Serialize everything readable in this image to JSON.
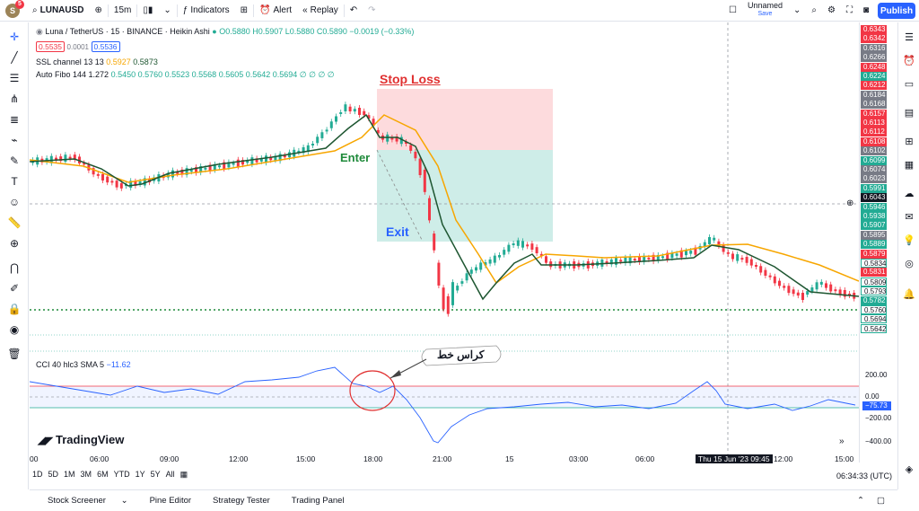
{
  "topbar": {
    "symbol": "LUNAUSD",
    "interval": "15m",
    "indicators": "Indicators",
    "alert": "Alert",
    "replay": "Replay",
    "layout_name": "Unnamed",
    "layout_status": "Save",
    "publish": "Publish",
    "avatar_letter": "S",
    "avatar_badge": "5"
  },
  "legend": {
    "title": "Luna / TetherUS · 15 · BINANCE · Heikin Ashi",
    "ohlc": "O0.5880 H0.5907 L0.5880 C0.5890 −0.0019 (−0.33%)",
    "sell": "0.5535",
    "spread": "0.0001",
    "buy": "0.5536",
    "ssl_label": "SSL channel 13 13",
    "ssl_v1": "0.5927",
    "ssl_v2": "0.5873",
    "fibo_label": "Auto Fibo 144 1.272",
    "fibo_values": "0.5450  0.5760  0.5523  0.5568  0.5605  0.5642  0.5694  ∅  ∅  ∅  ∅"
  },
  "cci": {
    "label": "CCI 40 hlc3 SMA 5",
    "value": "−11.62"
  },
  "annotations": {
    "stop_loss": "Stop Loss",
    "enter": "Enter",
    "exit": "Exit",
    "callout": "كراس خط"
  },
  "price_labels": [
    {
      "v": "0.6343",
      "c": "#f23645"
    },
    {
      "v": "0.6342",
      "c": "#f23645"
    },
    {
      "v": "0.6316",
      "c": "#787b86"
    },
    {
      "v": "0.6266",
      "c": "#787b86"
    },
    {
      "v": "0.6248",
      "c": "#f23645"
    },
    {
      "v": "0.6224",
      "c": "#22ab94"
    },
    {
      "v": "0.6212",
      "c": "#f23645"
    },
    {
      "v": "0.6184",
      "c": "#787b86"
    },
    {
      "v": "0.6168",
      "c": "#787b86"
    },
    {
      "v": "0.6157",
      "c": "#f23645"
    },
    {
      "v": "0.6113",
      "c": "#f23645"
    },
    {
      "v": "0.6112",
      "c": "#f23645"
    },
    {
      "v": "0.6108",
      "c": "#f23645"
    },
    {
      "v": "0.6102",
      "c": "#787b86"
    },
    {
      "v": "0.6099",
      "c": "#22ab94"
    },
    {
      "v": "0.6074",
      "c": "#787b86"
    },
    {
      "v": "0.6023",
      "c": "#787b86"
    },
    {
      "v": "0.5991",
      "c": "#22ab94"
    },
    {
      "v": "0.6043",
      "c": "#131722"
    },
    {
      "v": "0.5946",
      "c": "#22ab94"
    },
    {
      "v": "0.5938",
      "c": "#22ab94"
    },
    {
      "v": "0.5907",
      "c": "#22ab94"
    },
    {
      "v": "0.5895",
      "c": "#787b86"
    },
    {
      "v": "0.5889",
      "c": "#22ab94"
    },
    {
      "v": "0.5879",
      "c": "#f23645"
    },
    {
      "v": "0.5834",
      "c": "#ffffff"
    },
    {
      "v": "0.5831",
      "c": "#f23645"
    },
    {
      "v": "0.5809",
      "c": "#ffffff"
    },
    {
      "v": "0.5793",
      "c": "#ffffff"
    },
    {
      "v": "0.5782",
      "c": "#22ab94"
    },
    {
      "v": "0.5760",
      "c": "#ffffff"
    },
    {
      "v": "0.5694",
      "c": "#ffffff"
    },
    {
      "v": "0.5642",
      "c": "#ffffff"
    }
  ],
  "cci_scale": [
    "200.00",
    "0.00",
    "−75.73",
    "−200.00",
    "−400.00"
  ],
  "time_axis": [
    "00",
    "06:00",
    "09:00",
    "12:00",
    "15:00",
    "18:00",
    "21:00",
    "15",
    "03:00",
    "06:00",
    "Thu 15 Jun '23   09:45",
    "12:00",
    "15:00"
  ],
  "time_utc": "06:34:33 (UTC)",
  "ranges": [
    "1D",
    "5D",
    "1M",
    "3M",
    "6M",
    "YTD",
    "1Y",
    "5Y",
    "All"
  ],
  "footer": [
    "Stock Screener",
    "Pine Editor",
    "Strategy Tester",
    "Trading Panel"
  ],
  "brand": "TradingView",
  "colors": {
    "up": "#22ab94",
    "down": "#f23645",
    "ssl": "#f7a600",
    "accent": "#2962ff"
  }
}
